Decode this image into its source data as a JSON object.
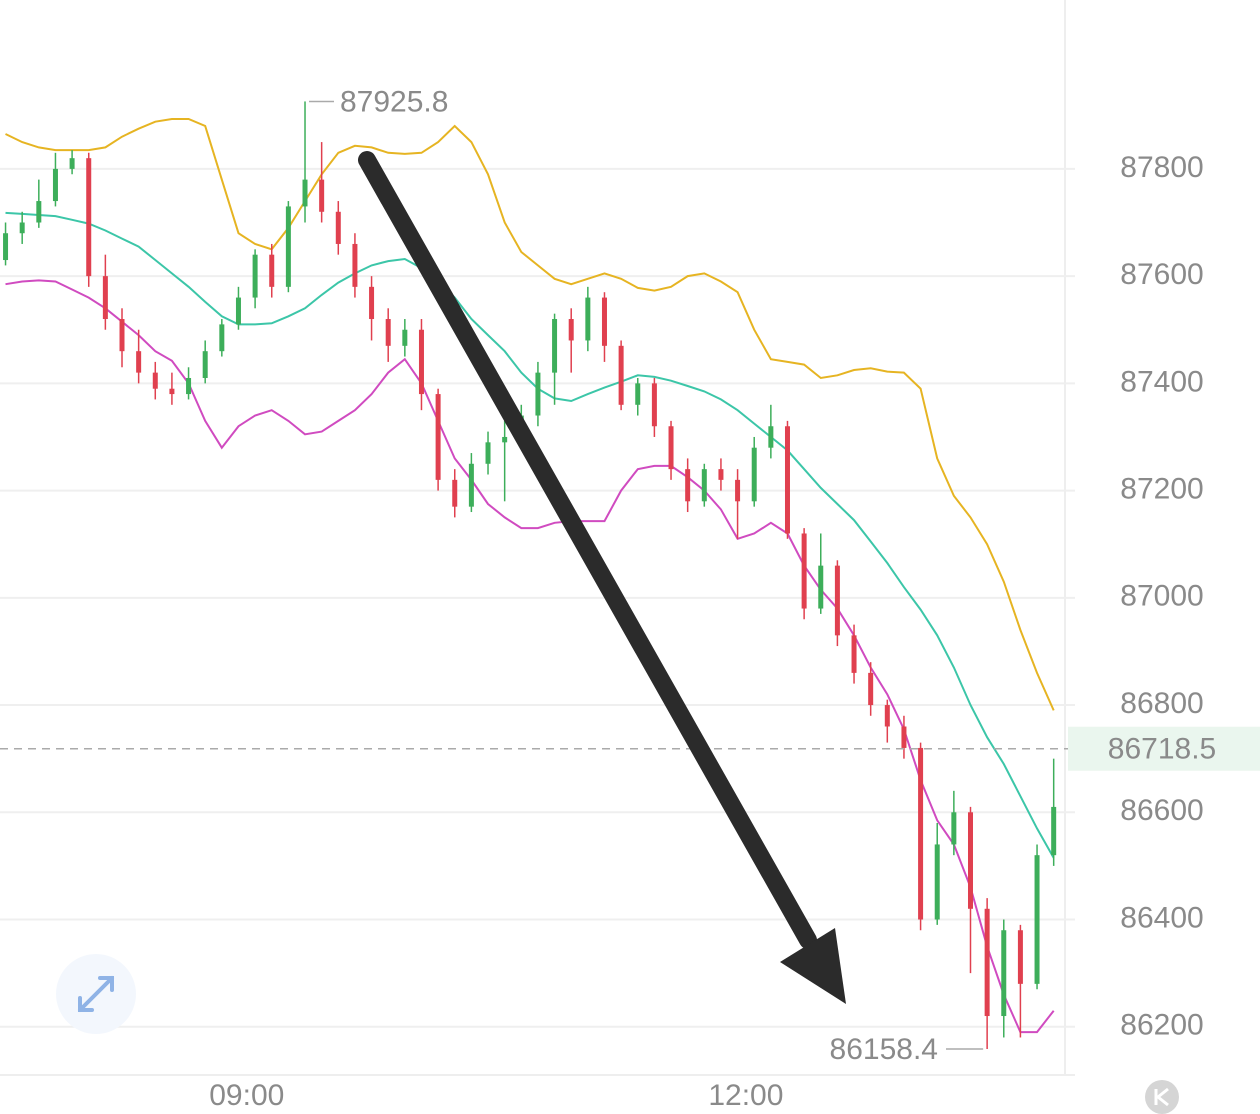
{
  "chart_data": {
    "type": "candlestick",
    "x": [
      "07:33",
      "07:39",
      "07:45",
      "07:51",
      "07:57",
      "08:03",
      "08:09",
      "08:15",
      "08:21",
      "08:27",
      "08:33",
      "08:39",
      "08:45",
      "08:51",
      "08:57",
      "09:03",
      "09:09",
      "09:15",
      "09:21",
      "09:27",
      "09:33",
      "09:39",
      "09:45",
      "09:51",
      "09:57",
      "10:03",
      "10:09",
      "10:15",
      "10:21",
      "10:27",
      "10:33",
      "10:39",
      "10:45",
      "10:51",
      "10:57",
      "11:03",
      "11:09",
      "11:15",
      "11:21",
      "11:27",
      "11:33",
      "11:39",
      "11:45",
      "11:51",
      "11:57",
      "12:03",
      "12:09",
      "12:15",
      "12:21",
      "12:27",
      "12:33",
      "12:39",
      "12:45",
      "12:51",
      "12:57",
      "13:03",
      "13:09",
      "13:15",
      "13:21",
      "13:27",
      "13:33",
      "13:39",
      "13:45",
      "13:51"
    ],
    "open": [
      87630,
      87680,
      87700,
      87740,
      87800,
      87820,
      87600,
      87520,
      87460,
      87420,
      87390,
      87380,
      87410,
      87460,
      87510,
      87560,
      87640,
      87580,
      87730,
      87780,
      87720,
      87660,
      87580,
      87520,
      87470,
      87500,
      87380,
      87220,
      87170,
      87250,
      87290,
      87300,
      87340,
      87420,
      87520,
      87480,
      87560,
      87470,
      87360,
      87400,
      87320,
      87240,
      87180,
      87240,
      87220,
      87180,
      87280,
      87320,
      87120,
      86980,
      87060,
      86930,
      86860,
      86800,
      86760,
      86720,
      86400,
      86540,
      86600,
      86420,
      86220,
      86380,
      86280,
      86520
    ],
    "high": [
      87700,
      87720,
      87780,
      87830,
      87835,
      87830,
      87640,
      87540,
      87500,
      87440,
      87420,
      87430,
      87480,
      87520,
      87580,
      87650,
      87660,
      87740,
      87925.8,
      87850,
      87740,
      87680,
      87600,
      87540,
      87520,
      87520,
      87390,
      87240,
      87270,
      87310,
      87330,
      87360,
      87440,
      87530,
      87540,
      87580,
      87570,
      87480,
      87410,
      87410,
      87330,
      87260,
      87250,
      87260,
      87240,
      87300,
      87360,
      87330,
      87130,
      87120,
      87070,
      86950,
      86880,
      86810,
      86780,
      86730,
      86580,
      86640,
      86610,
      86440,
      86400,
      86390,
      86540,
      86700
    ],
    "low": [
      87620,
      87660,
      87690,
      87730,
      87790,
      87580,
      87500,
      87430,
      87400,
      87370,
      87360,
      87370,
      87400,
      87450,
      87500,
      87540,
      87560,
      87570,
      87700,
      87700,
      87640,
      87560,
      87480,
      87440,
      87450,
      87350,
      87200,
      87150,
      87160,
      87230,
      87180,
      87280,
      87320,
      87360,
      87420,
      87460,
      87440,
      87350,
      87340,
      87300,
      87220,
      87160,
      87170,
      87200,
      87110,
      87170,
      87260,
      87110,
      86960,
      86970,
      86910,
      86840,
      86780,
      86730,
      86700,
      86380,
      86390,
      86520,
      86300,
      86158.4,
      86180,
      86180,
      86270,
      86500
    ],
    "close": [
      87680,
      87700,
      87740,
      87800,
      87820,
      87600,
      87520,
      87460,
      87420,
      87390,
      87380,
      87410,
      87460,
      87510,
      87560,
      87640,
      87580,
      87730,
      87780,
      87720,
      87660,
      87580,
      87520,
      87470,
      87500,
      87380,
      87220,
      87170,
      87250,
      87290,
      87300,
      87340,
      87420,
      87520,
      87480,
      87560,
      87470,
      87360,
      87400,
      87320,
      87240,
      87180,
      87240,
      87220,
      87180,
      87280,
      87320,
      87120,
      86980,
      87060,
      86930,
      86860,
      86800,
      86760,
      86720,
      86400,
      86540,
      86600,
      86420,
      86220,
      86380,
      86280,
      86520,
      86610
    ],
    "up_color": "#3dae5a",
    "down_color": "#e0404f",
    "lines": [
      {
        "color": "#e6b422",
        "values": [
          87865,
          87850,
          87840,
          87835,
          87835,
          87835,
          87840,
          87860,
          87875,
          87888,
          87893,
          87893,
          87880,
          87780,
          87680,
          87660,
          87650,
          87690,
          87740,
          87790,
          87830,
          87843,
          87840,
          87830,
          87828,
          87830,
          87850,
          87880,
          87850,
          87790,
          87700,
          87645,
          87620,
          87595,
          87585,
          87595,
          87605,
          87595,
          87578,
          87573,
          87580,
          87600,
          87605,
          87590,
          87570,
          87500,
          87445,
          87440,
          87435,
          87410,
          87415,
          87425,
          87428,
          87422,
          87420,
          87390,
          87260,
          87190,
          87150,
          87100,
          87030,
          86940,
          86860,
          86790
        ]
      },
      {
        "color": "#3cc6a8",
        "values": [
          87718,
          87716,
          87714,
          87712,
          87705,
          87698,
          87685,
          87670,
          87655,
          87630,
          87605,
          87580,
          87552,
          87525,
          87510,
          87510,
          87512,
          87525,
          87540,
          87565,
          87588,
          87605,
          87620,
          87628,
          87632,
          87615,
          87590,
          87560,
          87520,
          87490,
          87460,
          87420,
          87390,
          87372,
          87367,
          87380,
          87392,
          87403,
          87415,
          87412,
          87405,
          87395,
          87385,
          87370,
          87350,
          87325,
          87300,
          87275,
          87240,
          87205,
          87175,
          87145,
          87105,
          87065,
          87020,
          86978,
          86930,
          86870,
          86800,
          86740,
          86690,
          86630,
          86570,
          86515
        ]
      },
      {
        "color": "#d04bc0",
        "values": [
          87585,
          87590,
          87592,
          87590,
          87575,
          87560,
          87540,
          87515,
          87490,
          87460,
          87442,
          87400,
          87330,
          87280,
          87320,
          87340,
          87350,
          87330,
          87305,
          87310,
          87330,
          87350,
          87380,
          87420,
          87445,
          87400,
          87330,
          87260,
          87220,
          87175,
          87150,
          87130,
          87130,
          87140,
          87143,
          87143,
          87143,
          87200,
          87240,
          87246,
          87246,
          87225,
          87200,
          87165,
          87110,
          87120,
          87140,
          87120,
          87060,
          87015,
          86980,
          86930,
          86870,
          86820,
          86755,
          86660,
          86585,
          86540,
          86460,
          86350,
          86260,
          86190,
          86190,
          86230
        ]
      }
    ],
    "current_price": 86718.5,
    "xlim": [
      "07:31",
      "13:54"
    ],
    "xticks": [
      "09:00",
      "12:00"
    ],
    "ylim": [
      86110,
      88115
    ],
    "yticks": [
      86200,
      86400,
      86600,
      86800,
      87000,
      87200,
      87400,
      87600,
      87800
    ],
    "grid": true
  }
}
